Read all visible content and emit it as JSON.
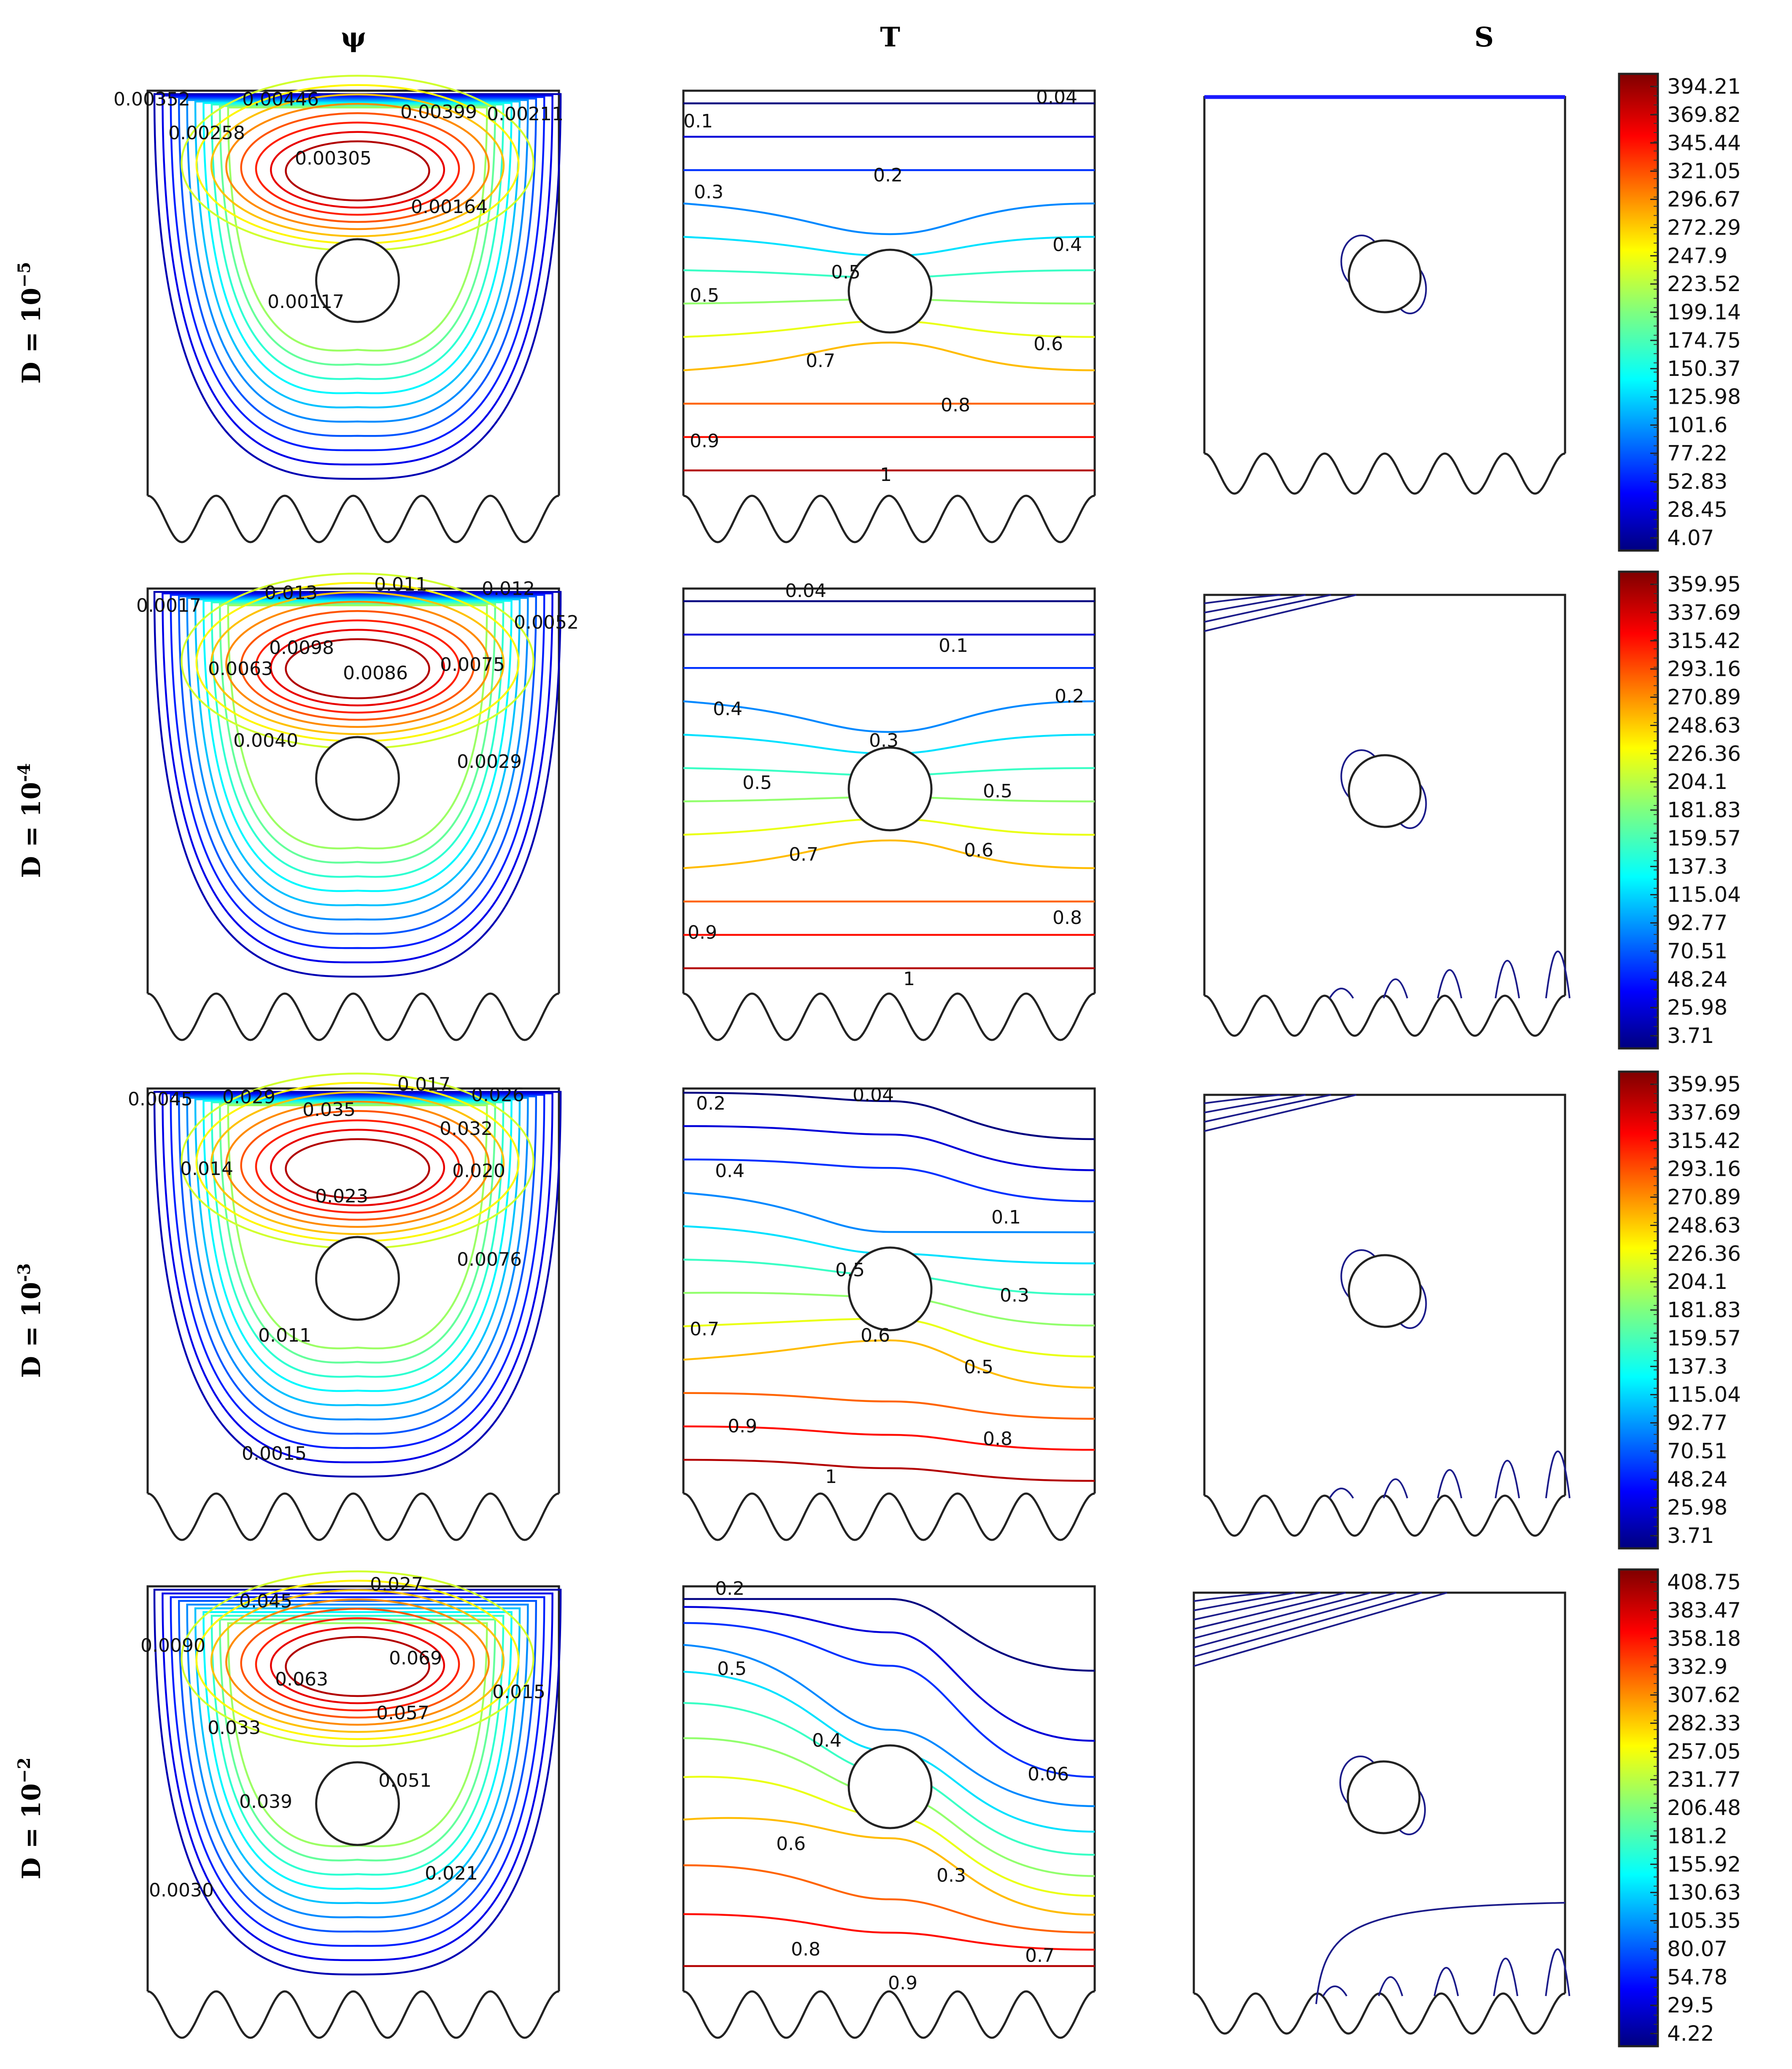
{
  "chart_data": {
    "type": "contour",
    "title": "",
    "columns": [
      "ψ",
      "T",
      "S"
    ],
    "rows": [
      {
        "label_prefix": "D = 10",
        "exponent": "−5",
        "psi_labels": [
          "0.00352",
          "0.00446",
          "0.00399",
          "0.00211",
          "0.00258",
          "0.00305",
          "0.00164",
          "0.00117"
        ],
        "T_labels": [
          "0.04",
          "0.1",
          "0.2",
          "0.3",
          "0.4",
          "0.5",
          "0.5",
          "0.6",
          "0.7",
          "0.8",
          "0.9",
          "1"
        ],
        "colorbar": [
          "394.21",
          "369.82",
          "345.44",
          "321.05",
          "296.67",
          "272.29",
          "247.9",
          "223.52",
          "199.14",
          "174.75",
          "150.37",
          "125.98",
          "101.6",
          "77.22",
          "52.83",
          "28.45",
          "4.07"
        ]
      },
      {
        "label_prefix": "D = 10",
        "exponent": "-4",
        "psi_labels": [
          "0.013",
          "0.011",
          "0.012",
          "0.0017",
          "0.0052",
          "0.0098",
          "0.0063",
          "0.0086",
          "0.0075",
          "0.0040",
          "0.0029"
        ],
        "T_labels": [
          "0.04",
          "0.1",
          "0.2",
          "0.4",
          "0.3",
          "0.5",
          "0.5",
          "0.6",
          "0.7",
          "0.8",
          "0.9",
          "1"
        ],
        "colorbar": [
          "359.95",
          "337.69",
          "315.42",
          "293.16",
          "270.89",
          "248.63",
          "226.36",
          "204.1",
          "181.83",
          "159.57",
          "137.3",
          "115.04",
          "92.77",
          "70.51",
          "48.24",
          "25.98",
          "3.71"
        ]
      },
      {
        "label_prefix": "D = 10",
        "exponent": "-3",
        "psi_labels": [
          "0.017",
          "0.0045",
          "0.029",
          "0.026",
          "0.035",
          "0.032",
          "0.014",
          "0.020",
          "0.023",
          "0.0076",
          "0.011",
          "0.0015"
        ],
        "T_labels": [
          "0.04",
          "0.2",
          "0.4",
          "0.1",
          "0.5",
          "0.3",
          "0.7",
          "0.6",
          "0.5",
          "0.9",
          "0.8",
          "1"
        ],
        "colorbar": [
          "359.95",
          "337.69",
          "315.42",
          "293.16",
          "270.89",
          "248.63",
          "226.36",
          "204.1",
          "181.83",
          "159.57",
          "137.3",
          "115.04",
          "92.77",
          "70.51",
          "48.24",
          "25.98",
          "3.71"
        ]
      },
      {
        "label_prefix": "D = 10",
        "exponent": "−2",
        "psi_labels": [
          "0.027",
          "0.045",
          "0.0090",
          "0.069",
          "0.063",
          "0.015",
          "0.057",
          "0.033",
          "0.051",
          "0.039",
          "0.021",
          "0.0030"
        ],
        "T_labels": [
          "0.2",
          "0.5",
          "0.4",
          "0.06",
          "0.6",
          "0.3",
          "0.8",
          "0.7",
          "0.9"
        ],
        "colorbar": [
          "408.75",
          "383.47",
          "358.18",
          "332.9",
          "307.62",
          "282.33",
          "257.05",
          "231.77",
          "206.48",
          "181.2",
          "155.92",
          "130.63",
          "105.35",
          "80.07",
          "54.78",
          "29.5",
          "4.22"
        ]
      }
    ]
  }
}
